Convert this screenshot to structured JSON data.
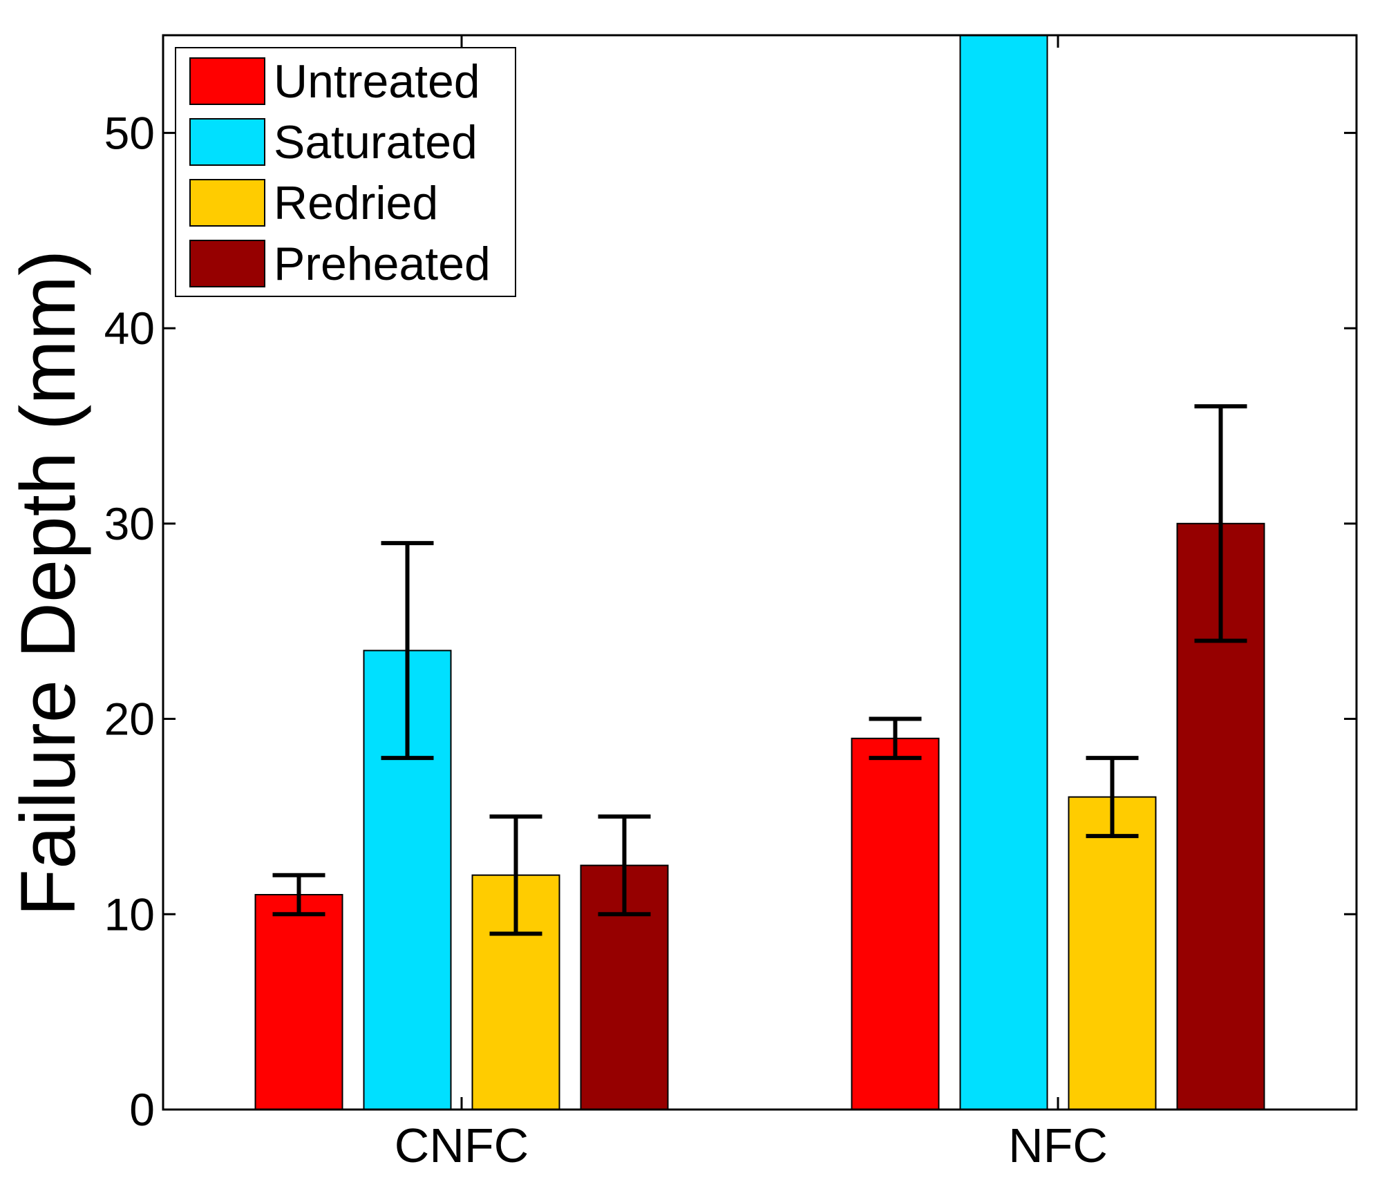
{
  "chart_data": {
    "type": "bar",
    "title": "",
    "xlabel": "",
    "ylabel": "Failure Depth (mm)",
    "ylim": [
      0,
      55
    ],
    "yticks": [
      0,
      10,
      20,
      30,
      40,
      50
    ],
    "grid": false,
    "legend_position": "top-left",
    "categories": [
      "CNFC",
      "NFC"
    ],
    "series": [
      {
        "name": "Untreated",
        "color": "#ff0000",
        "values": [
          11,
          19
        ],
        "err_low": [
          10,
          18
        ],
        "err_high": [
          12,
          20
        ]
      },
      {
        "name": "Saturated",
        "color": "#00e0ff",
        "values": [
          23.5,
          55
        ],
        "err_low": [
          18,
          null
        ],
        "err_high": [
          29,
          null
        ]
      },
      {
        "name": "Redried",
        "color": "#ffcc00",
        "values": [
          12,
          16
        ],
        "err_low": [
          9,
          14
        ],
        "err_high": [
          15,
          18
        ]
      },
      {
        "name": "Preheated",
        "color": "#960000",
        "values": [
          12.5,
          30
        ],
        "err_low": [
          10,
          24
        ],
        "err_high": [
          15,
          36
        ]
      }
    ]
  }
}
